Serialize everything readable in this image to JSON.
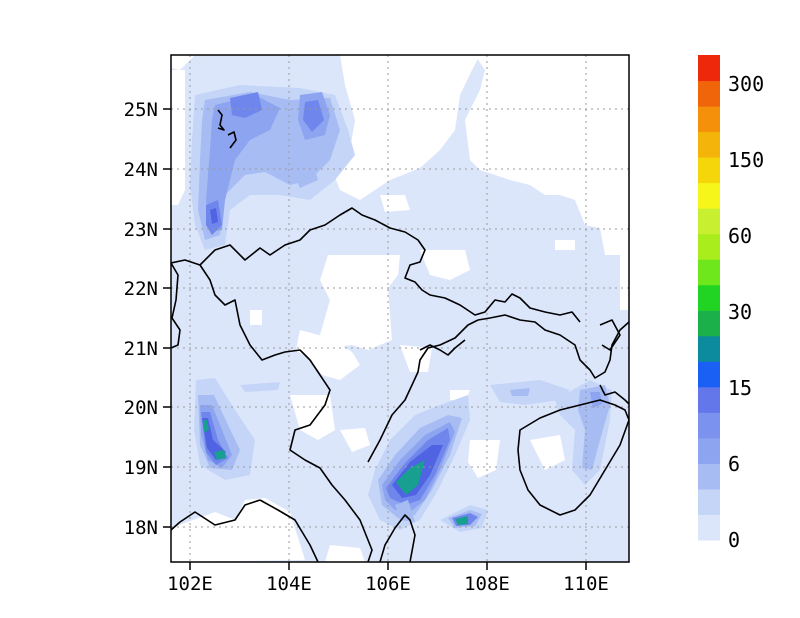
{
  "map": {
    "x_ticks": [
      "102E",
      "104E",
      "106E",
      "108E",
      "110E"
    ],
    "y_ticks": [
      "18N",
      "19N",
      "20N",
      "21N",
      "22N",
      "23N",
      "24N",
      "25N"
    ],
    "lon_range": [
      101.7,
      110.85
    ],
    "lat_range": [
      17.4,
      25.9
    ],
    "gridlines": "dotted",
    "fill_colors": {
      "lightest": "#dce6fb",
      "light": "#c5d5f8",
      "mid": "#a8bcf4",
      "medium": "#8da4f0",
      "strong": "#6f86ec",
      "deep": "#4f63e3",
      "teal": "#17a08f"
    }
  },
  "colorbar": {
    "labels": [
      "0",
      "6",
      "15",
      "30",
      "60",
      "150",
      "300"
    ],
    "colors": [
      "#dce6fb",
      "#c5d5f8",
      "#a8bcf4",
      "#8da4f0",
      "#7b93ee",
      "#6377ea",
      "#1a60f5",
      "#0c8a9e",
      "#1bb04a",
      "#21d424",
      "#6ee81c",
      "#a9ee1c",
      "#c8f030",
      "#f6f61a",
      "#f5d60a",
      "#f4b40a",
      "#f4900a",
      "#f0640a",
      "#ee280a"
    ]
  }
}
